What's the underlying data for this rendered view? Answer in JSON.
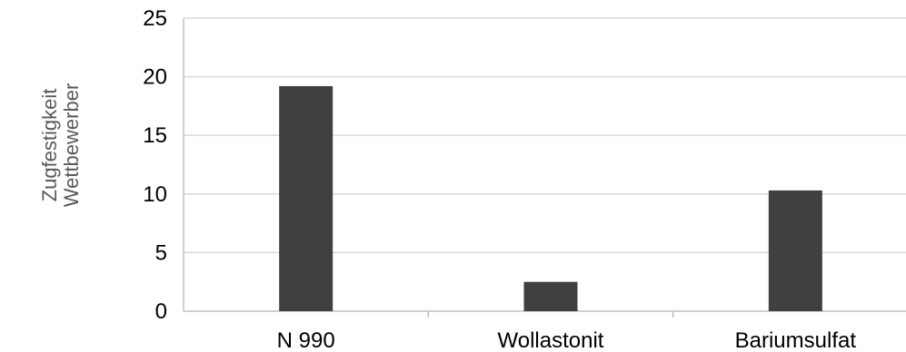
{
  "chart_data": {
    "type": "bar",
    "title": "",
    "xlabel": "",
    "ylabel": [
      "Zugfestigkeit",
      "Wettbewerber"
    ],
    "categories": [
      "N 990",
      "Wollastonit",
      "Bariumsulfat"
    ],
    "values": [
      19.2,
      2.5,
      10.3
    ],
    "ylim": [
      0,
      25
    ],
    "yticks": [
      0,
      5,
      10,
      15,
      20,
      25
    ],
    "grid": true,
    "legend": "none",
    "bar_color": "#404040",
    "grid_color": "#d9d9d9",
    "axis_color": "#bfbfbf"
  }
}
